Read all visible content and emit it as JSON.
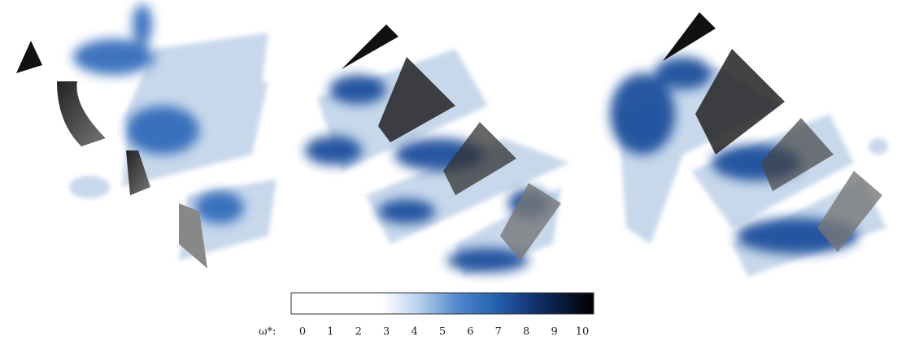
{
  "colorbar": {
    "label": "ω*:",
    "ticks": [
      0,
      1,
      2,
      3,
      4,
      5,
      6,
      7,
      8,
      9,
      10
    ]
  }
}
